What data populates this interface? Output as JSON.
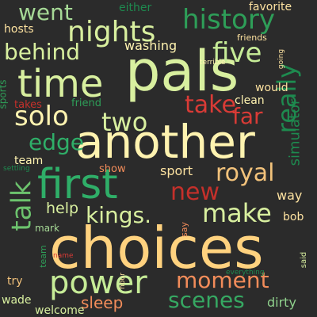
{
  "words": [
    {
      "text": "choices",
      "color": "#ffd27f",
      "rotate": false
    },
    {
      "text": "another",
      "color": "#fff3b0",
      "rotate": false
    },
    {
      "text": "pals",
      "color": "#d8ef9f",
      "rotate": false
    },
    {
      "text": "first",
      "color": "#2fae68",
      "rotate": false
    },
    {
      "text": "time",
      "color": "#d8ef9f",
      "rotate": false
    },
    {
      "text": "power",
      "color": "#c6ec97",
      "rotate": false
    },
    {
      "text": "history",
      "color": "#2e9e58",
      "rotate": false
    },
    {
      "text": "nights",
      "color": "#d8ef9f",
      "rotate": false
    },
    {
      "text": "royal",
      "color": "#f2c27b",
      "rotate": false
    },
    {
      "text": "talk",
      "color": "#6cc36d",
      "rotate": true
    },
    {
      "text": "really",
      "color": "#1e8a4f",
      "rotate": true
    },
    {
      "text": "kings.",
      "color": "#d8ef9f",
      "rotate": false
    },
    {
      "text": "make",
      "color": "#d8ef9f",
      "rotate": false
    },
    {
      "text": "take",
      "color": "#d93b36",
      "rotate": false
    },
    {
      "text": "moment",
      "color": "#f28c5a",
      "rotate": false
    },
    {
      "text": "solo",
      "color": "#fff3b0",
      "rotate": false
    },
    {
      "text": "two",
      "color": "#d8ef9f",
      "rotate": false
    },
    {
      "text": "five",
      "color": "#c6ec97",
      "rotate": false
    },
    {
      "text": "scenes",
      "color": "#36a862",
      "rotate": false
    },
    {
      "text": "new",
      "color": "#c4302b",
      "rotate": false
    },
    {
      "text": "went",
      "color": "#a6d996",
      "rotate": false
    },
    {
      "text": "behind",
      "color": "#d8ef9f",
      "rotate": false
    },
    {
      "text": "edge",
      "color": "#2fae68",
      "rotate": false
    },
    {
      "text": "far",
      "color": "#d93b36",
      "rotate": false
    },
    {
      "text": "help",
      "color": "#d8ef9f",
      "rotate": false
    },
    {
      "text": "sleep",
      "color": "#f28c5a",
      "rotate": false
    },
    {
      "text": "simulator",
      "color": "#1e8a4f",
      "rotate": true
    },
    {
      "text": "sport",
      "color": "#fde2a0",
      "rotate": false
    },
    {
      "text": "welcome",
      "color": "#d8ef9f",
      "rotate": false
    },
    {
      "text": "dirty",
      "color": "#8fd08c",
      "rotate": false
    },
    {
      "text": "favorite",
      "color": "#fde2a0",
      "rotate": false
    },
    {
      "text": "washing",
      "color": "#fff3b0",
      "rotate": false
    },
    {
      "text": "team",
      "color": "#fff3b0",
      "rotate": false
    },
    {
      "text": "way",
      "color": "#fde2a0",
      "rotate": false
    },
    {
      "text": "bob",
      "color": "#fde2a0",
      "rotate": false
    },
    {
      "text": "either",
      "color": "#1e8a4f",
      "rotate": false
    },
    {
      "text": "hosts",
      "color": "#fde2a0",
      "rotate": false
    },
    {
      "text": "friend",
      "color": "#2e9e58",
      "rotate": false
    },
    {
      "text": "clean",
      "color": "#fff3b0",
      "rotate": false
    },
    {
      "text": "would",
      "color": "#fde2a0",
      "rotate": false
    },
    {
      "text": "takes",
      "color": "#c4302b",
      "rotate": false
    },
    {
      "text": "show",
      "color": "#f28c5a",
      "rotate": false
    },
    {
      "text": "mark",
      "color": "#a6d996",
      "rotate": false
    },
    {
      "text": "try",
      "color": "#f2c27b",
      "rotate": false
    },
    {
      "text": "wade",
      "color": "#d8ef9f",
      "rotate": false
    },
    {
      "text": "sports",
      "color": "#2e9e58",
      "rotate": true
    },
    {
      "text": "terrible",
      "color": "#fff3b0",
      "rotate": false
    },
    {
      "text": "friends",
      "color": "#fde2a0",
      "rotate": false
    },
    {
      "text": "going",
      "color": "#fde2a0",
      "rotate": true
    },
    {
      "text": "settling",
      "color": "#1e8a4f",
      "rotate": false
    },
    {
      "text": "say",
      "color": "#f28c5a",
      "rotate": true
    },
    {
      "text": "team",
      "color": "#2e9e58",
      "rotate": true
    },
    {
      "text": "name",
      "color": "#d93b36",
      "rotate": false
    },
    {
      "text": "hour",
      "color": "#fde2a0",
      "rotate": true
    },
    {
      "text": "everything",
      "color": "#1e8a4f",
      "rotate": false
    },
    {
      "text": "said",
      "color": "#d8ef9f",
      "rotate": true
    }
  ]
}
